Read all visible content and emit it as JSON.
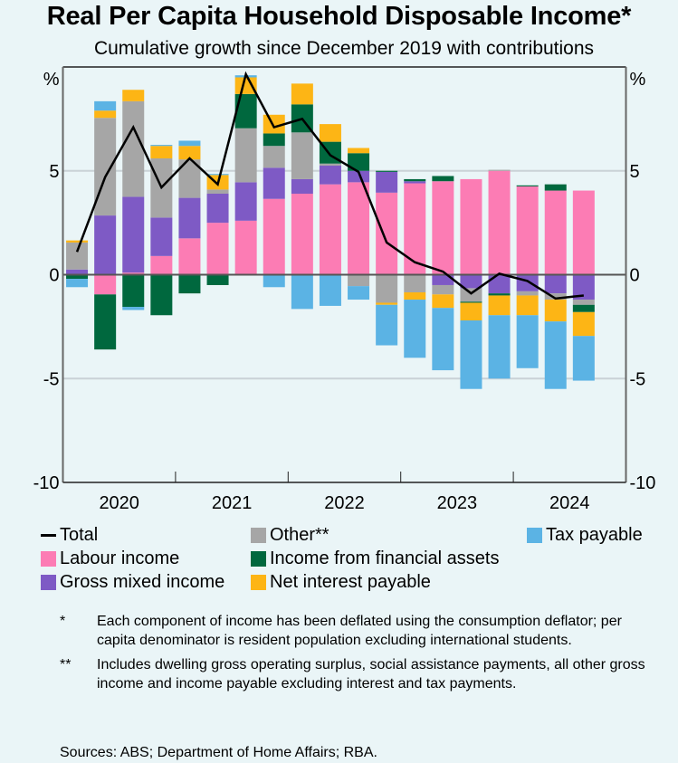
{
  "title": "Real Per Capita Household Disposable Income*",
  "subtitle": "Cumulative growth since December 2019 with contributions",
  "colors": {
    "background": "#EAF5F7",
    "labour": "#FC7CB4",
    "mixed": "#7E5AC5",
    "other": "#A6A6A6",
    "financial": "#00683E",
    "interest": "#FDB515",
    "tax": "#5BB3E4",
    "total": "#000000"
  },
  "chart_data": {
    "type": "bar",
    "stacked": true,
    "title": "Real Per Capita Household Disposable Income*",
    "subtitle": "Cumulative growth since December 2019 with contributions",
    "xlabel": "",
    "ylabel_left": "%",
    "ylabel_right": "%",
    "ylim": [
      -10,
      10
    ],
    "yticks": [
      -10,
      -5,
      0,
      5
    ],
    "ytick_labels": [
      "-10",
      "-5",
      "0",
      "5"
    ],
    "xtick_labels": [
      "2020",
      "2021",
      "2022",
      "2023",
      "2024"
    ],
    "grid": "horizontal",
    "frequency": "quarterly",
    "categories": [
      "Mar-2020",
      "Jun-2020",
      "Sep-2020",
      "Dec-2020",
      "Mar-2021",
      "Jun-2021",
      "Sep-2021",
      "Dec-2021",
      "Mar-2022",
      "Jun-2022",
      "Sep-2022",
      "Dec-2022",
      "Mar-2023",
      "Jun-2023",
      "Sep-2023",
      "Dec-2023",
      "Mar-2024",
      "Jun-2024",
      "Sep-2024"
    ],
    "series": [
      {
        "name": "Labour income",
        "key": "labour",
        "values": [
          0,
          -0.95,
          0.1,
          0.9,
          1.75,
          2.5,
          2.6,
          3.65,
          3.9,
          4.35,
          4.45,
          3.95,
          4.4,
          4.5,
          4.6,
          5.0,
          4.25,
          4.05,
          4.05
        ]
      },
      {
        "name": "Gross mixed income",
        "key": "mixed",
        "values": [
          0.25,
          2.85,
          3.65,
          1.85,
          1.95,
          1.4,
          1.85,
          1.5,
          0.7,
          0.9,
          0.55,
          1.0,
          0.1,
          -0.5,
          -0.65,
          -0.9,
          -0.8,
          -0.9,
          -1.2
        ]
      },
      {
        "name": "Other**",
        "key": "other",
        "values": [
          1.3,
          4.7,
          4.6,
          2.85,
          1.85,
          0.2,
          2.6,
          1.05,
          2.25,
          0.1,
          -0.55,
          -1.35,
          -0.85,
          -0.45,
          -0.65,
          0.05,
          -0.2,
          -0.3,
          -0.25
        ]
      },
      {
        "name": "Income from financial assets",
        "key": "financial",
        "values": [
          -0.2,
          -2.65,
          -1.55,
          -1.95,
          -0.9,
          -0.5,
          1.65,
          0.6,
          1.35,
          1.05,
          0.85,
          0.05,
          0.1,
          0.25,
          -0.05,
          -0.1,
          0.05,
          0.3,
          -0.35
        ]
      },
      {
        "name": "Net interest payable",
        "key": "interest",
        "values": [
          0.1,
          0.35,
          0.55,
          0.6,
          0.65,
          0.7,
          0.8,
          0.9,
          1.0,
          0.85,
          0.25,
          -0.1,
          -0.35,
          -0.65,
          -0.85,
          -0.95,
          -0.95,
          -1.05,
          -1.15
        ]
      },
      {
        "name": "Tax payable",
        "key": "tax",
        "values": [
          -0.4,
          0.45,
          -0.15,
          0.05,
          0.25,
          0.05,
          0.1,
          -0.6,
          -1.65,
          -1.5,
          -0.65,
          -1.95,
          -2.8,
          -3.0,
          -3.3,
          -3.05,
          -2.55,
          -3.25,
          -2.15
        ]
      }
    ],
    "line": {
      "name": "Total",
      "key": "total",
      "values": [
        1.1,
        4.7,
        7.1,
        4.2,
        5.6,
        4.35,
        9.65,
        7.1,
        7.5,
        5.75,
        4.95,
        1.55,
        0.6,
        0.15,
        -0.9,
        0.05,
        -0.3,
        -1.15,
        -1.0
      ]
    }
  },
  "legend": [
    {
      "label": "Total",
      "key": "total",
      "kind": "line"
    },
    {
      "label": "Other**",
      "key": "other",
      "kind": "box"
    },
    {
      "label": "Tax payable",
      "key": "tax",
      "kind": "box"
    },
    {
      "label": "Labour income",
      "key": "labour",
      "kind": "box"
    },
    {
      "label": "Income from financial assets",
      "key": "financial",
      "kind": "box"
    },
    {
      "label": "Gross mixed income",
      "key": "mixed",
      "kind": "box"
    },
    {
      "label": "Net interest payable",
      "key": "interest",
      "kind": "box"
    }
  ],
  "notes": [
    {
      "mark": "*",
      "text": "Each component of income has been deflated using the consumption deflator; per capita denominator is resident population excluding international students."
    },
    {
      "mark": "**",
      "text": "Includes dwelling gross operating surplus, social assistance payments, all other gross income and income payable excluding interest and tax payments."
    }
  ],
  "sources": "Sources: ABS; Department of Home Affairs; RBA."
}
